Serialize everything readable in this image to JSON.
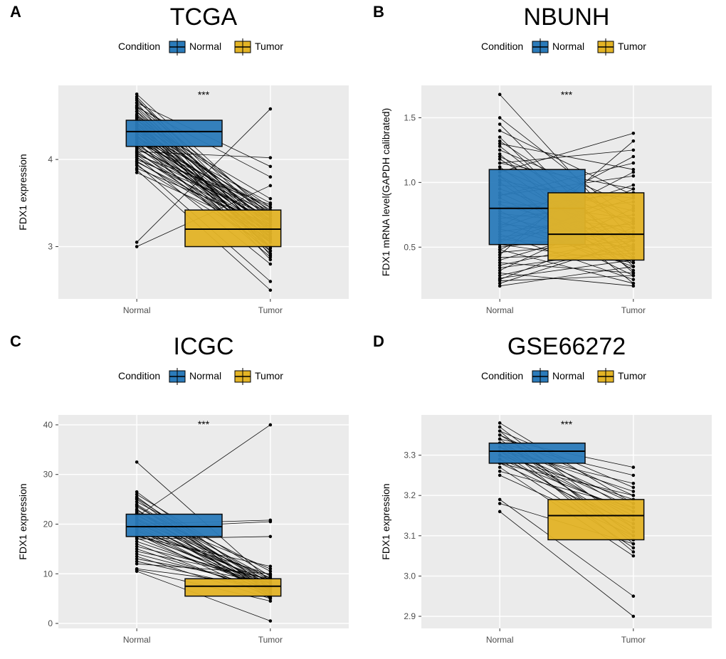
{
  "colors": {
    "normal_fill": "#2b7bba",
    "tumor_fill": "#e3b426",
    "box_stroke": "#000000",
    "panel_bg": "#ebebeb",
    "grid_major": "#ffffff",
    "axis_text": "#4d4d4d",
    "point_fill": "#000000",
    "line_stroke": "#000000"
  },
  "legend": {
    "title": "Condition",
    "items": [
      "Normal",
      "Tumor"
    ]
  },
  "significance_label": "***",
  "panels": {
    "A": {
      "letter": "A",
      "title": "TCGA",
      "ylabel": "FDX1 expression",
      "xcats": [
        "Normal",
        "Tumor"
      ],
      "ylim": [
        2.4,
        4.85
      ],
      "yticks": [
        3,
        4
      ],
      "ytick_labels": [
        "3",
        "4"
      ],
      "box_normal": {
        "q1": 4.15,
        "median": 4.32,
        "q3": 4.45
      },
      "box_tumor": {
        "q1": 3.0,
        "median": 3.2,
        "q3": 3.42
      },
      "pairs": [
        [
          4.75,
          3.35
        ],
        [
          4.72,
          3.15
        ],
        [
          4.7,
          3.05
        ],
        [
          4.68,
          3.3
        ],
        [
          4.65,
          2.9
        ],
        [
          4.62,
          3.4
        ],
        [
          4.6,
          3.22
        ],
        [
          4.58,
          3.1
        ],
        [
          4.55,
          3.25
        ],
        [
          4.55,
          2.95
        ],
        [
          4.52,
          3.18
        ],
        [
          4.5,
          3.45
        ],
        [
          4.5,
          3.0
        ],
        [
          4.48,
          3.35
        ],
        [
          4.47,
          2.85
        ],
        [
          4.45,
          3.28
        ],
        [
          4.45,
          3.55
        ],
        [
          4.42,
          3.12
        ],
        [
          4.42,
          3.38
        ],
        [
          4.4,
          3.05
        ],
        [
          4.4,
          3.2
        ],
        [
          4.38,
          2.98
        ],
        [
          4.36,
          3.42
        ],
        [
          4.35,
          3.15
        ],
        [
          4.35,
          3.3
        ],
        [
          4.33,
          3.08
        ],
        [
          4.32,
          3.5
        ],
        [
          4.31,
          3.0
        ],
        [
          4.3,
          3.22
        ],
        [
          4.3,
          3.35
        ],
        [
          4.28,
          2.92
        ],
        [
          4.27,
          3.18
        ],
        [
          4.26,
          3.4
        ],
        [
          4.25,
          3.1
        ],
        [
          4.25,
          3.25
        ],
        [
          4.23,
          3.05
        ],
        [
          4.22,
          3.32
        ],
        [
          4.2,
          2.88
        ],
        [
          4.2,
          3.45
        ],
        [
          4.18,
          3.15
        ],
        [
          4.16,
          3.28
        ],
        [
          4.15,
          3.0
        ],
        [
          4.14,
          3.2
        ],
        [
          4.12,
          3.38
        ],
        [
          4.1,
          2.95
        ],
        [
          4.09,
          4.02
        ],
        [
          4.08,
          3.12
        ],
        [
          4.07,
          3.3
        ],
        [
          4.05,
          3.05
        ],
        [
          4.05,
          3.48
        ],
        [
          4.03,
          2.8
        ],
        [
          4.02,
          3.22
        ],
        [
          4.0,
          3.35
        ],
        [
          3.98,
          3.08
        ],
        [
          3.97,
          3.18
        ],
        [
          3.95,
          2.6
        ],
        [
          3.93,
          3.0
        ],
        [
          3.9,
          3.25
        ],
        [
          3.88,
          2.5
        ],
        [
          3.85,
          3.15
        ],
        [
          3.05,
          4.58
        ],
        [
          3.0,
          3.7
        ],
        [
          4.6,
          3.8
        ],
        [
          4.65,
          3.92
        ]
      ]
    },
    "B": {
      "letter": "B",
      "title": "NBUNH",
      "ylabel": "FDX1 mRNA level(GAPDH calibrated)",
      "xcats": [
        "Normal",
        "Tumor"
      ],
      "ylim": [
        0.1,
        1.75
      ],
      "yticks": [
        0.5,
        1.0,
        1.5
      ],
      "ytick_labels": [
        "0.5",
        "1.0",
        "1.5"
      ],
      "box_normal": {
        "q1": 0.52,
        "median": 0.8,
        "q3": 1.1
      },
      "box_tumor": {
        "q1": 0.4,
        "median": 0.6,
        "q3": 0.92
      },
      "pairs": [
        [
          1.68,
          0.55
        ],
        [
          1.5,
          0.7
        ],
        [
          1.45,
          0.42
        ],
        [
          1.4,
          0.9
        ],
        [
          1.35,
          0.35
        ],
        [
          1.32,
          0.65
        ],
        [
          1.3,
          1.1
        ],
        [
          1.28,
          0.48
        ],
        [
          1.25,
          0.82
        ],
        [
          1.22,
          0.3
        ],
        [
          1.2,
          0.72
        ],
        [
          1.18,
          0.55
        ],
        [
          1.15,
          0.95
        ],
        [
          1.12,
          0.4
        ],
        [
          1.1,
          0.68
        ],
        [
          1.08,
          1.38
        ],
        [
          1.05,
          0.5
        ],
        [
          1.02,
          0.78
        ],
        [
          1.0,
          0.32
        ],
        [
          0.98,
          0.88
        ],
        [
          0.95,
          0.6
        ],
        [
          0.92,
          0.45
        ],
        [
          0.9,
          1.05
        ],
        [
          0.88,
          0.38
        ],
        [
          0.85,
          0.72
        ],
        [
          0.83,
          0.55
        ],
        [
          0.8,
          0.92
        ],
        [
          0.78,
          0.28
        ],
        [
          0.76,
          0.65
        ],
        [
          0.74,
          0.48
        ],
        [
          0.72,
          0.85
        ],
        [
          0.7,
          0.35
        ],
        [
          0.68,
          0.58
        ],
        [
          0.66,
          1.2
        ],
        [
          0.64,
          0.42
        ],
        [
          0.62,
          0.75
        ],
        [
          0.6,
          0.25
        ],
        [
          0.58,
          0.68
        ],
        [
          0.56,
          0.5
        ],
        [
          0.54,
          0.88
        ],
        [
          0.52,
          0.38
        ],
        [
          0.5,
          0.62
        ],
        [
          0.48,
          0.22
        ],
        [
          0.46,
          0.55
        ],
        [
          0.44,
          1.32
        ],
        [
          0.42,
          0.45
        ],
        [
          0.4,
          0.7
        ],
        [
          0.38,
          0.3
        ],
        [
          0.36,
          0.58
        ],
        [
          0.34,
          0.48
        ],
        [
          0.32,
          0.8
        ],
        [
          0.3,
          0.2
        ],
        [
          0.28,
          0.52
        ],
        [
          0.26,
          0.4
        ],
        [
          0.25,
          0.65
        ],
        [
          0.24,
          0.28
        ],
        [
          0.22,
          0.55
        ],
        [
          0.2,
          0.35
        ],
        [
          1.15,
          1.25
        ],
        [
          0.9,
          1.15
        ],
        [
          0.65,
          0.98
        ],
        [
          0.55,
          1.08
        ],
        [
          1.05,
          0.22
        ],
        [
          0.48,
          0.95
        ]
      ]
    },
    "C": {
      "letter": "C",
      "title": "ICGC",
      "ylabel": "FDX1 expression",
      "xcats": [
        "Normal",
        "Tumor"
      ],
      "ylim": [
        -1,
        42
      ],
      "yticks": [
        0,
        10,
        20,
        30,
        40
      ],
      "ytick_labels": [
        "0",
        "10",
        "20",
        "30",
        "40"
      ],
      "box_normal": {
        "q1": 17.5,
        "median": 19.5,
        "q3": 22.0
      },
      "box_tumor": {
        "q1": 5.5,
        "median": 7.5,
        "q3": 9.0
      },
      "pairs": [
        [
          32.5,
          8.5
        ],
        [
          26.5,
          7.0
        ],
        [
          26.0,
          9.5
        ],
        [
          25.5,
          6.0
        ],
        [
          25.2,
          8.0
        ],
        [
          25.0,
          5.5
        ],
        [
          24.5,
          10.5
        ],
        [
          24.0,
          7.5
        ],
        [
          23.8,
          6.5
        ],
        [
          23.5,
          9.0
        ],
        [
          23.0,
          5.0
        ],
        [
          22.8,
          8.2
        ],
        [
          22.5,
          7.0
        ],
        [
          22.2,
          11.0
        ],
        [
          22.0,
          6.0
        ],
        [
          21.7,
          8.8
        ],
        [
          21.5,
          40.0
        ],
        [
          21.2,
          7.5
        ],
        [
          21.0,
          5.5
        ],
        [
          20.8,
          9.2
        ],
        [
          20.5,
          6.8
        ],
        [
          20.2,
          8.0
        ],
        [
          20.0,
          20.8
        ],
        [
          19.8,
          7.2
        ],
        [
          19.5,
          5.8
        ],
        [
          19.2,
          20.5
        ],
        [
          19.0,
          8.5
        ],
        [
          18.8,
          6.5
        ],
        [
          18.5,
          9.8
        ],
        [
          18.2,
          7.0
        ],
        [
          18.0,
          5.2
        ],
        [
          17.8,
          8.0
        ],
        [
          17.5,
          11.5
        ],
        [
          17.2,
          6.8
        ],
        [
          17.0,
          17.5
        ],
        [
          16.5,
          7.5
        ],
        [
          16.0,
          5.5
        ],
        [
          15.5,
          8.8
        ],
        [
          15.0,
          6.2
        ],
        [
          14.5,
          9.0
        ],
        [
          14.0,
          7.0
        ],
        [
          13.5,
          5.0
        ],
        [
          13.0,
          8.2
        ],
        [
          12.5,
          6.5
        ],
        [
          12.0,
          10.0
        ],
        [
          11.0,
          7.5
        ],
        [
          10.8,
          4.5
        ],
        [
          10.5,
          0.5
        ]
      ]
    },
    "D": {
      "letter": "D",
      "title": "GSE66272",
      "ylabel": "FDX1 expression",
      "xcats": [
        "Normal",
        "Tumor"
      ],
      "ylim": [
        2.87,
        3.4
      ],
      "yticks": [
        2.9,
        3.0,
        3.1,
        3.2,
        3.3
      ],
      "ytick_labels": [
        "2.9",
        "3.0",
        "3.1",
        "3.2",
        "3.3"
      ],
      "box_normal": {
        "q1": 3.28,
        "median": 3.31,
        "q3": 3.33
      },
      "box_tumor": {
        "q1": 3.09,
        "median": 3.15,
        "q3": 3.19
      },
      "pairs": [
        [
          3.38,
          3.18
        ],
        [
          3.37,
          3.12
        ],
        [
          3.36,
          3.22
        ],
        [
          3.36,
          3.08
        ],
        [
          3.35,
          3.16
        ],
        [
          3.35,
          3.2
        ],
        [
          3.34,
          3.1
        ],
        [
          3.34,
          3.27
        ],
        [
          3.33,
          3.14
        ],
        [
          3.33,
          3.18
        ],
        [
          3.33,
          3.06
        ],
        [
          3.32,
          3.21
        ],
        [
          3.32,
          3.12
        ],
        [
          3.32,
          3.17
        ],
        [
          3.31,
          3.09
        ],
        [
          3.31,
          3.15
        ],
        [
          3.31,
          3.23
        ],
        [
          3.3,
          3.11
        ],
        [
          3.3,
          3.19
        ],
        [
          3.29,
          3.07
        ],
        [
          3.29,
          3.16
        ],
        [
          3.28,
          3.13
        ],
        [
          3.28,
          3.2
        ],
        [
          3.27,
          3.05
        ],
        [
          3.26,
          3.17
        ],
        [
          3.25,
          3.1
        ],
        [
          3.19,
          2.95
        ],
        [
          3.18,
          3.08
        ],
        [
          3.16,
          2.9
        ],
        [
          3.33,
          3.25
        ]
      ]
    }
  }
}
